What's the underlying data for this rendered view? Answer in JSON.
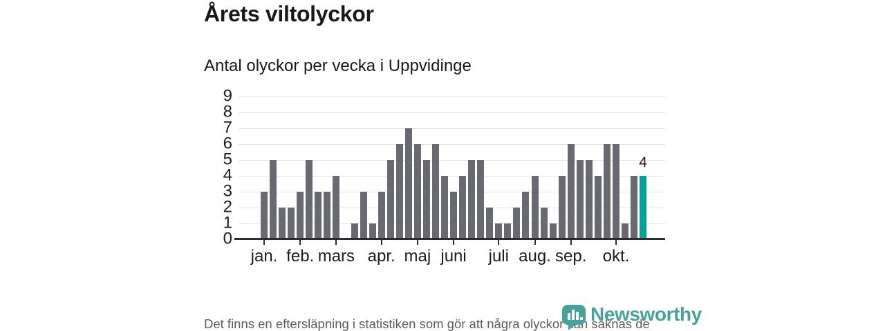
{
  "header": {
    "title": "Årets viltolyckor",
    "subtitle": "Antal olyckor per vecka i Uppvidinge"
  },
  "chart_data": {
    "type": "bar",
    "title": "Årets viltolyckor",
    "subtitle": "Antal olyckor per vecka i Uppvidinge",
    "x_unit": "week",
    "values": [
      3,
      5,
      2,
      2,
      3,
      5,
      3,
      3,
      4,
      0,
      1,
      3,
      1,
      3,
      5,
      6,
      7,
      6,
      5,
      6,
      4,
      3,
      4,
      5,
      5,
      2,
      1,
      1,
      2,
      3,
      4,
      2,
      1,
      4,
      6,
      5,
      5,
      4,
      6,
      6,
      1,
      4,
      4
    ],
    "highlight_index": 42,
    "highlight_label": "4",
    "ylim": [
      0,
      9
    ],
    "y_ticks": [
      0,
      1,
      2,
      3,
      4,
      5,
      6,
      7,
      8,
      9
    ],
    "month_ticks": [
      {
        "label": "jan.",
        "week": 1
      },
      {
        "label": "feb.",
        "week": 5
      },
      {
        "label": "mars",
        "week": 9
      },
      {
        "label": "apr.",
        "week": 14
      },
      {
        "label": "maj",
        "week": 18
      },
      {
        "label": "juni",
        "week": 22
      },
      {
        "label": "juli",
        "week": 27
      },
      {
        "label": "aug.",
        "week": 31
      },
      {
        "label": "sep.",
        "week": 35
      },
      {
        "label": "okt.",
        "week": 40
      }
    ],
    "grid": true,
    "legend": "none",
    "xlabel": "",
    "ylabel": "",
    "colors": {
      "bar": "#696972",
      "highlight": "#00a39b",
      "gridline": "#e3e3e3",
      "axis": "#2d2d2d"
    }
  },
  "footer": {
    "note": "Det finns en eftersläpning i statistiken som gör att några olyckor kan saknas de senaste veckorna.",
    "brand": "Newsworthy",
    "brand_color": "#48a19b"
  }
}
